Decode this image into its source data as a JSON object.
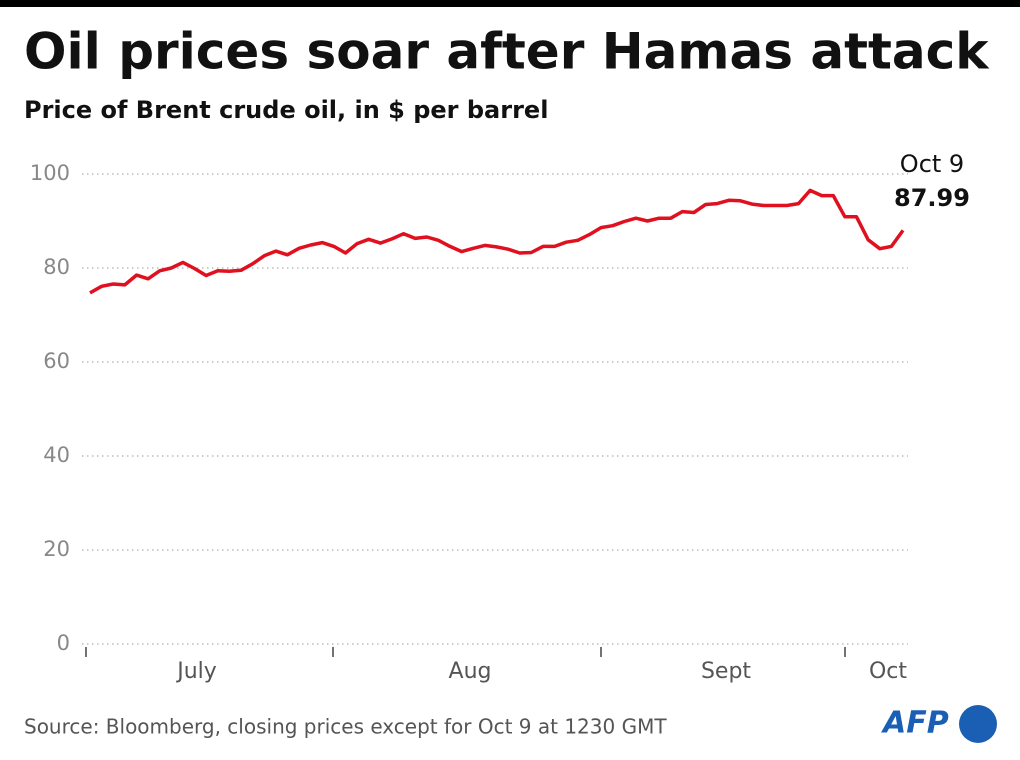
{
  "chart_data": {
    "type": "line",
    "title": "Oil prices soar after Hamas attack",
    "subtitle": "Price of Brent crude oil, in $ per barrel",
    "source": "Source: Bloomberg, closing prices except for Oct 9 at 1230 GMT",
    "logo": "AFP",
    "x_months": [
      "July",
      "Aug",
      "Sept",
      "Oct"
    ],
    "categories": [
      null,
      null,
      null,
      null,
      null,
      null,
      null,
      null,
      null,
      null,
      null,
      null,
      null,
      null,
      null,
      null,
      null,
      null,
      null,
      null,
      null,
      null,
      null,
      null,
      null,
      null,
      null,
      null,
      null,
      null,
      null,
      null,
      null,
      null,
      null,
      null,
      null,
      null,
      null,
      null,
      null,
      null,
      null,
      null,
      null,
      null,
      null,
      null,
      null,
      null,
      null,
      null,
      null,
      null,
      null,
      null,
      null,
      null,
      null,
      null,
      null,
      null,
      null,
      null,
      null,
      null,
      null,
      null,
      null,
      null,
      "Oct 9"
    ],
    "series": [
      {
        "name": "Brent",
        "color": "#e1101f",
        "values": [
          74.7,
          76.1,
          76.6,
          76.4,
          78.5,
          77.7,
          79.4,
          80.0,
          81.2,
          79.9,
          78.4,
          79.4,
          79.3,
          79.5,
          80.9,
          82.6,
          83.6,
          82.8,
          84.2,
          84.9,
          85.4,
          84.6,
          83.2,
          85.2,
          86.1,
          85.3,
          86.2,
          87.3,
          86.3,
          86.6,
          85.9,
          84.6,
          83.5,
          84.2,
          84.8,
          84.5,
          84.0,
          83.2,
          83.3,
          84.6,
          84.6,
          85.5,
          85.9,
          87.1,
          88.6,
          89.0,
          89.9,
          90.6,
          90.0,
          90.6,
          90.6,
          92.0,
          91.8,
          93.5,
          93.7,
          94.4,
          94.3,
          93.6,
          93.3,
          93.3,
          93.3,
          93.7,
          96.5,
          95.4,
          95.4,
          90.9,
          90.9,
          86.0,
          84.1,
          84.6,
          87.99
        ]
      }
    ],
    "ylim": [
      0,
      100
    ],
    "yticks": [
      0,
      20,
      40,
      60,
      80,
      100
    ],
    "grid": true
  }
}
